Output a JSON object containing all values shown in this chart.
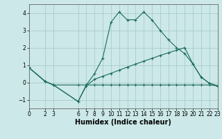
{
  "xlabel": "Humidex (Indice chaleur)",
  "background_color": "#cce8e8",
  "grid_color": "#aacccc",
  "line_color": "#1a6b5a",
  "xlim": [
    0,
    23
  ],
  "ylim": [
    -1.5,
    4.5
  ],
  "yticks": [
    -1,
    0,
    1,
    2,
    3,
    4
  ],
  "xticks": [
    0,
    2,
    3,
    6,
    7,
    8,
    9,
    10,
    11,
    12,
    13,
    14,
    15,
    16,
    17,
    18,
    19,
    20,
    21,
    22,
    23
  ],
  "line1_x": [
    0,
    2,
    3,
    6,
    7,
    8,
    9,
    10,
    11,
    12,
    13,
    14,
    15,
    16,
    17,
    18,
    19,
    20,
    21,
    22,
    23
  ],
  "line1_y": [
    0.85,
    0.05,
    -0.15,
    -1.1,
    -0.15,
    0.5,
    1.4,
    3.45,
    4.05,
    3.6,
    3.6,
    4.05,
    3.6,
    3.0,
    2.45,
    2.0,
    1.65,
    1.05,
    0.3,
    -0.05,
    -0.2
  ],
  "line2_x": [
    0,
    2,
    3,
    6,
    7,
    8,
    9,
    10,
    11,
    12,
    13,
    14,
    15,
    16,
    17,
    18,
    19,
    20,
    21,
    22,
    23
  ],
  "line2_y": [
    0.85,
    0.05,
    -0.15,
    -0.15,
    -0.15,
    -0.15,
    -0.15,
    -0.15,
    -0.15,
    -0.15,
    -0.15,
    -0.15,
    -0.15,
    -0.15,
    -0.15,
    -0.15,
    -0.15,
    -0.15,
    -0.15,
    -0.15,
    -0.2
  ],
  "line3_x": [
    0,
    2,
    3,
    6,
    7,
    8,
    9,
    10,
    11,
    12,
    13,
    14,
    15,
    16,
    17,
    18,
    19,
    20,
    21,
    22,
    23
  ],
  "line3_y": [
    0.85,
    0.05,
    -0.15,
    -1.1,
    -0.2,
    0.18,
    0.35,
    0.52,
    0.7,
    0.88,
    1.05,
    1.22,
    1.38,
    1.55,
    1.7,
    1.85,
    2.0,
    1.05,
    0.3,
    -0.05,
    -0.2
  ],
  "tick_fontsize": 5.5,
  "xlabel_fontsize": 7
}
